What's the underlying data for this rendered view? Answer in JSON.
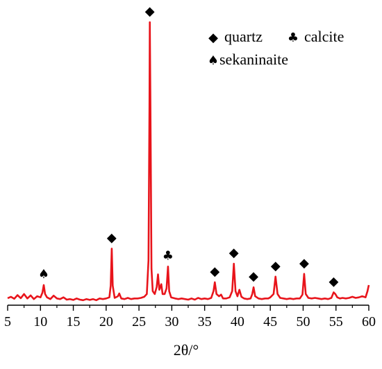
{
  "chart_data": {
    "type": "line",
    "xlabel": "2θ/°",
    "ylabel": "",
    "title": "",
    "xlim": [
      5,
      60
    ],
    "ylim": [
      0,
      1000
    ],
    "x_ticks": [
      5,
      10,
      15,
      20,
      25,
      30,
      35,
      40,
      45,
      50,
      55,
      60
    ],
    "grid": false,
    "line_color": "#e8141b",
    "series": [
      {
        "points": [
          [
            5.0,
            15
          ],
          [
            5.5,
            20
          ],
          [
            6.0,
            13
          ],
          [
            6.5,
            26
          ],
          [
            7.0,
            15
          ],
          [
            7.5,
            30
          ],
          [
            8.0,
            14
          ],
          [
            8.5,
            25
          ],
          [
            9.0,
            12
          ],
          [
            9.5,
            22
          ],
          [
            10.0,
            18
          ],
          [
            10.3,
            35
          ],
          [
            10.5,
            62
          ],
          [
            10.7,
            30
          ],
          [
            11.0,
            18
          ],
          [
            11.5,
            12
          ],
          [
            12.0,
            24
          ],
          [
            12.5,
            14
          ],
          [
            13.0,
            12
          ],
          [
            13.5,
            18
          ],
          [
            14.0,
            10
          ],
          [
            14.5,
            12
          ],
          [
            15.0,
            9
          ],
          [
            15.5,
            14
          ],
          [
            16.0,
            10
          ],
          [
            16.5,
            8
          ],
          [
            17.0,
            12
          ],
          [
            17.5,
            9
          ],
          [
            18.0,
            12
          ],
          [
            18.5,
            8
          ],
          [
            19.0,
            14
          ],
          [
            19.5,
            12
          ],
          [
            20.0,
            14
          ],
          [
            20.5,
            18
          ],
          [
            20.7,
            60
          ],
          [
            20.85,
            192
          ],
          [
            21.0,
            60
          ],
          [
            21.3,
            16
          ],
          [
            21.8,
            22
          ],
          [
            22.0,
            32
          ],
          [
            22.3,
            14
          ],
          [
            22.8,
            12
          ],
          [
            23.3,
            16
          ],
          [
            23.8,
            12
          ],
          [
            24.3,
            14
          ],
          [
            24.8,
            14
          ],
          [
            25.3,
            16
          ],
          [
            25.8,
            20
          ],
          [
            26.2,
            30
          ],
          [
            26.45,
            150
          ],
          [
            26.6,
            700
          ],
          [
            26.65,
            1000
          ],
          [
            26.75,
            700
          ],
          [
            26.9,
            120
          ],
          [
            27.1,
            40
          ],
          [
            27.4,
            30
          ],
          [
            27.7,
            55
          ],
          [
            27.9,
            100
          ],
          [
            28.1,
            45
          ],
          [
            28.4,
            65
          ],
          [
            28.6,
            30
          ],
          [
            28.9,
            30
          ],
          [
            29.2,
            50
          ],
          [
            29.42,
            128
          ],
          [
            29.6,
            40
          ],
          [
            29.9,
            18
          ],
          [
            30.5,
            14
          ],
          [
            31.0,
            12
          ],
          [
            31.5,
            14
          ],
          [
            32.0,
            12
          ],
          [
            32.5,
            10
          ],
          [
            33.0,
            14
          ],
          [
            33.5,
            10
          ],
          [
            34.0,
            16
          ],
          [
            34.5,
            12
          ],
          [
            35.0,
            14
          ],
          [
            35.5,
            12
          ],
          [
            36.0,
            16
          ],
          [
            36.35,
            40
          ],
          [
            36.55,
            72
          ],
          [
            36.8,
            30
          ],
          [
            37.2,
            22
          ],
          [
            37.5,
            28
          ],
          [
            37.8,
            14
          ],
          [
            38.3,
            14
          ],
          [
            38.8,
            18
          ],
          [
            39.2,
            40
          ],
          [
            39.45,
            138
          ],
          [
            39.7,
            40
          ],
          [
            40.0,
            22
          ],
          [
            40.3,
            45
          ],
          [
            40.6,
            20
          ],
          [
            41.0,
            14
          ],
          [
            41.5,
            12
          ],
          [
            42.0,
            14
          ],
          [
            42.25,
            30
          ],
          [
            42.45,
            54
          ],
          [
            42.7,
            22
          ],
          [
            43.2,
            14
          ],
          [
            43.7,
            12
          ],
          [
            44.2,
            14
          ],
          [
            44.7,
            14
          ],
          [
            45.0,
            18
          ],
          [
            45.5,
            30
          ],
          [
            45.8,
            92
          ],
          [
            46.1,
            30
          ],
          [
            46.5,
            16
          ],
          [
            47.0,
            14
          ],
          [
            47.5,
            12
          ],
          [
            48.0,
            14
          ],
          [
            48.5,
            12
          ],
          [
            49.0,
            14
          ],
          [
            49.5,
            14
          ],
          [
            49.9,
            28
          ],
          [
            50.15,
            102
          ],
          [
            50.4,
            30
          ],
          [
            50.8,
            16
          ],
          [
            51.3,
            14
          ],
          [
            51.8,
            16
          ],
          [
            52.3,
            14
          ],
          [
            52.8,
            12
          ],
          [
            53.3,
            14
          ],
          [
            53.8,
            12
          ],
          [
            54.3,
            16
          ],
          [
            54.65,
            36
          ],
          [
            54.9,
            30
          ],
          [
            55.2,
            18
          ],
          [
            55.6,
            14
          ],
          [
            56.0,
            16
          ],
          [
            56.5,
            14
          ],
          [
            57.0,
            16
          ],
          [
            57.5,
            20
          ],
          [
            58.0,
            16
          ],
          [
            58.5,
            18
          ],
          [
            59.0,
            22
          ],
          [
            59.5,
            18
          ],
          [
            59.8,
            40
          ],
          [
            60.0,
            62
          ]
        ]
      }
    ],
    "peak_markers": [
      {
        "x": 10.5,
        "y": 62,
        "symbol": "♠",
        "phase": "sekaninaite"
      },
      {
        "x": 20.85,
        "y": 192,
        "symbol": "◆",
        "phase": "quartz"
      },
      {
        "x": 26.65,
        "y": 1000,
        "symbol": "◆",
        "phase": "quartz"
      },
      {
        "x": 29.42,
        "y": 128,
        "symbol": "♣",
        "phase": "calcite"
      },
      {
        "x": 36.55,
        "y": 72,
        "symbol": "◆",
        "phase": "quartz"
      },
      {
        "x": 39.45,
        "y": 138,
        "symbol": "◆",
        "phase": "quartz"
      },
      {
        "x": 42.45,
        "y": 54,
        "symbol": "◆",
        "phase": "quartz"
      },
      {
        "x": 45.8,
        "y": 92,
        "symbol": "◆",
        "phase": "quartz"
      },
      {
        "x": 50.15,
        "y": 102,
        "symbol": "◆",
        "phase": "quartz"
      },
      {
        "x": 54.65,
        "y": 36,
        "symbol": "◆",
        "phase": "quartz"
      }
    ],
    "legend": {
      "placement": "top-right",
      "entries": [
        {
          "symbol": "◆",
          "label": "quartz"
        },
        {
          "symbol": "♣",
          "label": "calcite"
        },
        {
          "symbol": "♠",
          "label": "sekaninaite"
        }
      ]
    }
  }
}
